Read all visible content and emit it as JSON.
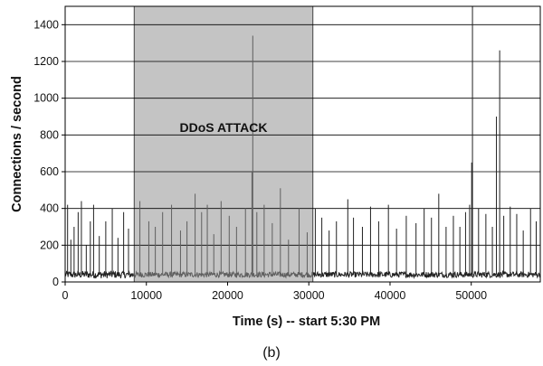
{
  "chart_data": {
    "type": "line",
    "xlabel": "Time (s) -- start 5:30 PM",
    "ylabel": "Connections / second",
    "xlim": [
      0,
      58500
    ],
    "ylim": [
      0,
      1500
    ],
    "x_ticks": [
      0,
      10000,
      20000,
      30000,
      40000,
      50000
    ],
    "y_ticks": [
      0,
      200,
      400,
      600,
      800,
      1000,
      1200,
      1400
    ],
    "grid": "horizontal",
    "legend": "none",
    "attack_region": {
      "x_start": 8500,
      "x_end": 30500,
      "label": "DDoS ATTACK",
      "label_y": 840
    },
    "baseline": 40,
    "series": [
      {
        "values": [
          [
            300,
            420
          ],
          [
            700,
            230
          ],
          [
            1100,
            300
          ],
          [
            1600,
            380
          ],
          [
            2000,
            440
          ],
          [
            2600,
            200
          ],
          [
            3100,
            330
          ],
          [
            3500,
            420
          ],
          [
            4200,
            250
          ],
          [
            5000,
            330
          ],
          [
            5800,
            400
          ],
          [
            6500,
            240
          ],
          [
            7200,
            380
          ],
          [
            7800,
            290
          ],
          [
            9200,
            440
          ],
          [
            10300,
            330
          ],
          [
            11100,
            300
          ],
          [
            12000,
            380
          ],
          [
            13100,
            420
          ],
          [
            14200,
            280
          ],
          [
            15000,
            330
          ],
          [
            16000,
            480
          ],
          [
            16800,
            380
          ],
          [
            17500,
            420
          ],
          [
            18300,
            260
          ],
          [
            19200,
            440
          ],
          [
            20200,
            360
          ],
          [
            21100,
            300
          ],
          [
            22200,
            400
          ],
          [
            23000,
            600
          ],
          [
            23100,
            1340
          ],
          [
            23600,
            380
          ],
          [
            24500,
            420
          ],
          [
            25500,
            320
          ],
          [
            26500,
            510
          ],
          [
            27500,
            230
          ],
          [
            28800,
            400
          ],
          [
            29800,
            270
          ],
          [
            30800,
            400
          ],
          [
            31600,
            350
          ],
          [
            32500,
            280
          ],
          [
            33400,
            330
          ],
          [
            34800,
            450
          ],
          [
            35500,
            350
          ],
          [
            36600,
            300
          ],
          [
            37600,
            410
          ],
          [
            38600,
            330
          ],
          [
            39800,
            420
          ],
          [
            40800,
            290
          ],
          [
            42000,
            360
          ],
          [
            43200,
            320
          ],
          [
            44200,
            400
          ],
          [
            45100,
            350
          ],
          [
            46000,
            480
          ],
          [
            46900,
            300
          ],
          [
            47800,
            360
          ],
          [
            48600,
            300
          ],
          [
            49300,
            380
          ],
          [
            49800,
            420
          ],
          [
            50050,
            650
          ],
          [
            50150,
            1500
          ],
          [
            50900,
            400
          ],
          [
            51800,
            370
          ],
          [
            52600,
            300
          ],
          [
            53100,
            900
          ],
          [
            53500,
            1260
          ],
          [
            54000,
            360
          ],
          [
            54800,
            410
          ],
          [
            55600,
            370
          ],
          [
            56400,
            280
          ],
          [
            57300,
            400
          ],
          [
            58000,
            330
          ]
        ]
      }
    ]
  },
  "caption": "(b)",
  "colors": {
    "series": "#222222",
    "attack_series": "#5f5f5f",
    "attack_fill": "#c4c4c4",
    "grid": "#000000"
  }
}
